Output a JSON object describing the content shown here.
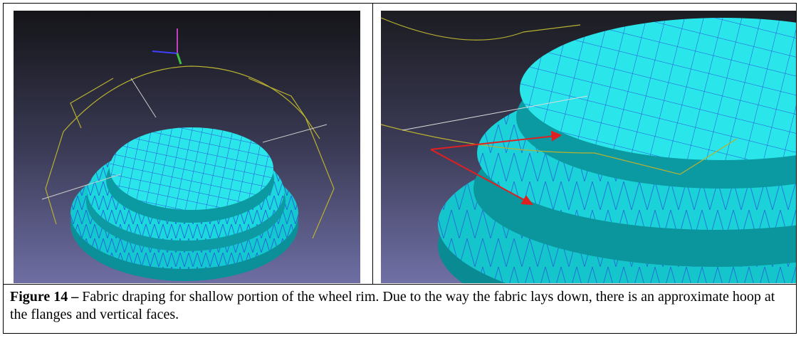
{
  "figure": {
    "label": "Figure 14 –",
    "text": "Fabric draping for shallow portion of the wheel rim. Due to the way the fabric lays down, there is an approximate hoop at the flanges and vertical faces."
  }
}
